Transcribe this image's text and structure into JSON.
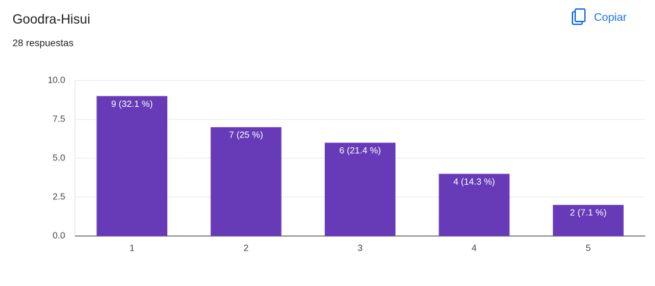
{
  "chart_data": {
    "type": "bar",
    "title": "Goodra-Hisui",
    "subtitle": "28 respuestas",
    "categories": [
      "1",
      "2",
      "3",
      "4",
      "5"
    ],
    "values": [
      9,
      7,
      6,
      4,
      2
    ],
    "value_labels": [
      "9 (32.1 %)",
      "7 (25 %)",
      "6 (21.4 %)",
      "4 (14.3 %)",
      "2 (7.1 %)"
    ],
    "color": "#673ab7",
    "ylim": [
      0,
      10
    ],
    "yticks": [
      {
        "value": 0,
        "label": "0.0"
      },
      2.5,
      {
        "value": 5,
        "label": "5.0"
      },
      7.5,
      {
        "value": 10,
        "label": "10.0"
      }
    ],
    "grid": true
  },
  "copy_button": "Copiar"
}
